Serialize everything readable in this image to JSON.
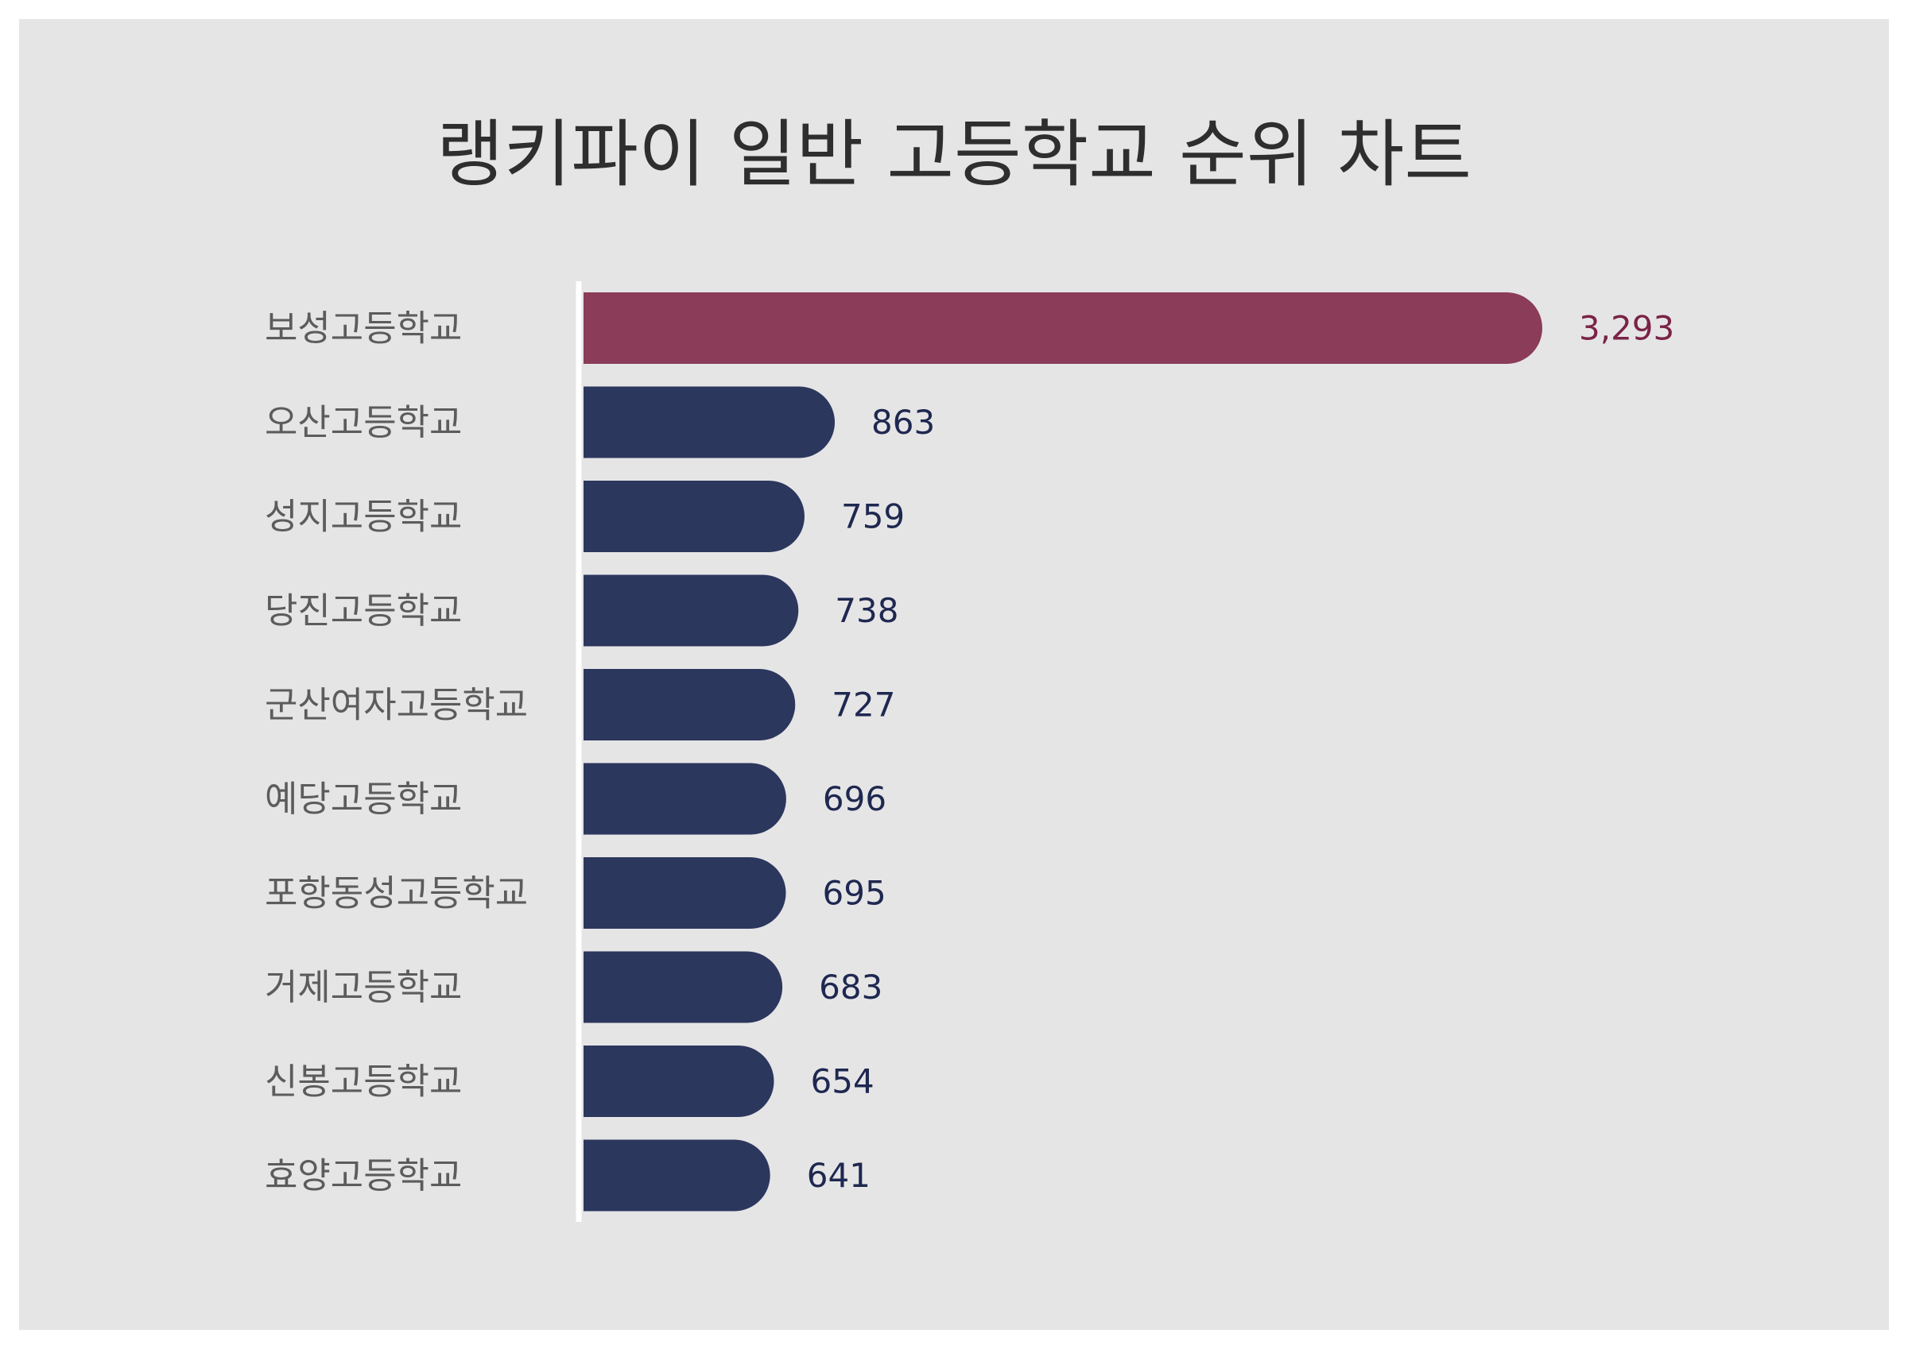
{
  "chart_data": {
    "type": "bar",
    "orientation": "horizontal",
    "title": "랭키파이 일반 고등학교 순위 차트",
    "categories": [
      "보성고등학교",
      "오산고등학교",
      "성지고등학교",
      "당진고등학교",
      "군산여자고등학교",
      "예당고등학교",
      "포항동성고등학교",
      "거제고등학교",
      "신봉고등학교",
      "효양고등학교"
    ],
    "values": [
      3293,
      863,
      759,
      738,
      727,
      696,
      695,
      683,
      654,
      641
    ],
    "value_labels": [
      "3,293",
      "863",
      "759",
      "738",
      "727",
      "696",
      "695",
      "683",
      "654",
      "641"
    ],
    "xlim": [
      0,
      3293
    ],
    "grid": false,
    "legend": "none",
    "colors": {
      "background": "#e6e5e6",
      "highlight_bar": "#8a3c59",
      "bar": "#2c375d",
      "highlight_label": "#7a2346",
      "value_label": "#1e2850",
      "category_label": "#5c5c5c",
      "title": "#2e2e2e",
      "axis_line": "#ffffff"
    }
  }
}
